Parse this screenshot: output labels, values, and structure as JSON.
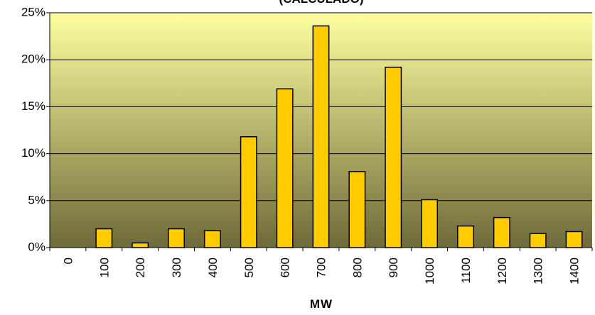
{
  "chart_data": {
    "type": "bar",
    "title": "(CALCULADO)",
    "xlabel": "MW",
    "ylabel": "",
    "categories": [
      "0",
      "100",
      "200",
      "300",
      "400",
      "500",
      "600",
      "700",
      "800",
      "900",
      "1000",
      "1100",
      "1200",
      "1300",
      "1400"
    ],
    "values": [
      0,
      2.0,
      0.5,
      2.0,
      1.8,
      11.8,
      16.9,
      23.6,
      8.1,
      19.2,
      5.1,
      2.3,
      3.2,
      1.5,
      1.7
    ],
    "ylim": [
      0,
      25
    ],
    "yticks": [
      0,
      5,
      10,
      15,
      20,
      25
    ],
    "ytick_format": "percent",
    "grid": true,
    "colors": {
      "bar_fill": "#FFCC00",
      "bar_stroke": "#000000",
      "plot_gradient_top": "#FFFFA0",
      "plot_gradient_bottom": "#6E6A3A",
      "gridline": "#000000"
    }
  }
}
